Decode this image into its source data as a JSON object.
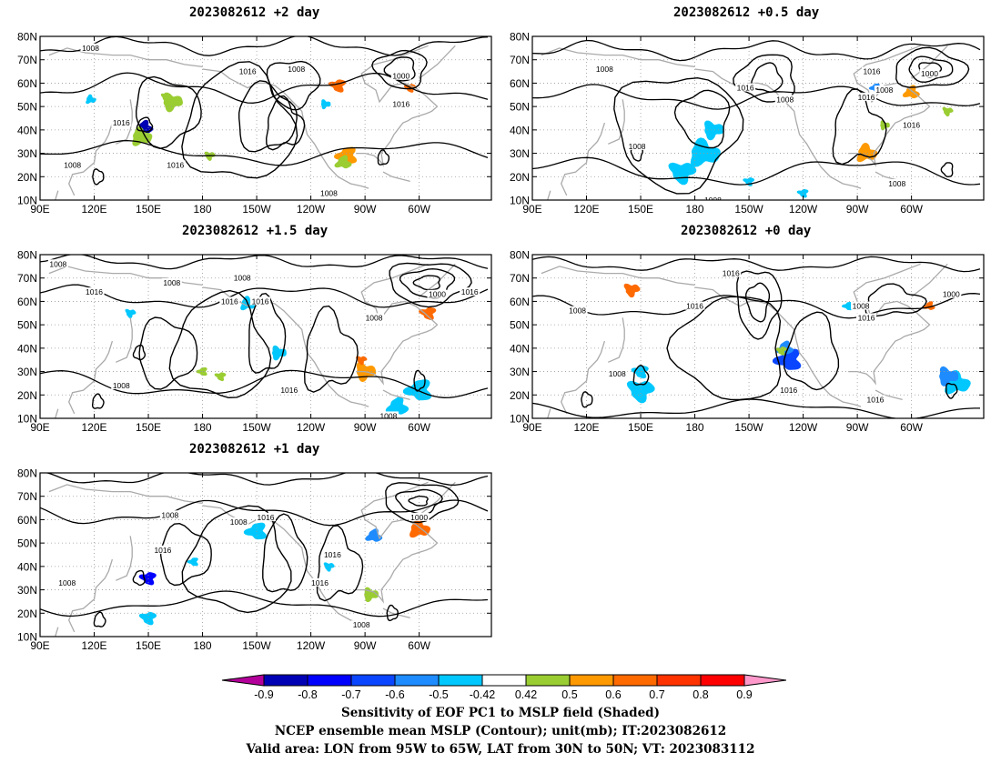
{
  "map": {
    "lat_labels": [
      "80N",
      "70N",
      "60N",
      "50N",
      "40N",
      "30N",
      "20N",
      "10N"
    ],
    "lon_labels": [
      "90E",
      "120E",
      "150E",
      "180",
      "150W",
      "120W",
      "90W",
      "60W"
    ],
    "lat_range": [
      10,
      80
    ],
    "lon_range_deg_east": [
      90,
      340
    ]
  },
  "panels": [
    {
      "id": "p2",
      "title": "2023082612 +2 day",
      "contour_labels": [
        {
          "text": "1008",
          "lon": 118,
          "lat": 75
        },
        {
          "text": "1016",
          "lon": 205,
          "lat": 65
        },
        {
          "text": "1008",
          "lon": 232,
          "lat": 66
        },
        {
          "text": "1000",
          "lon": 290,
          "lat": 63
        },
        {
          "text": "1016",
          "lon": 290,
          "lat": 51
        },
        {
          "text": "1016",
          "lon": 135,
          "lat": 43
        },
        {
          "text": "1008",
          "lon": 108,
          "lat": 25
        },
        {
          "text": "1016",
          "lon": 165,
          "lat": 25
        },
        {
          "text": "1008",
          "lon": 250,
          "lat": 13
        }
      ]
    },
    {
      "id": "p05",
      "title": "2023082612 +0.5 day",
      "contour_labels": [
        {
          "text": "1008",
          "lon": 130,
          "lat": 66
        },
        {
          "text": "1016",
          "lon": 208,
          "lat": 58
        },
        {
          "text": "1008",
          "lon": 230,
          "lat": 53
        },
        {
          "text": "1016",
          "lon": 278,
          "lat": 65
        },
        {
          "text": "1016",
          "lon": 275,
          "lat": 54
        },
        {
          "text": "1000",
          "lon": 310,
          "lat": 64
        },
        {
          "text": "1008",
          "lon": 285,
          "lat": 57
        },
        {
          "text": "1016",
          "lon": 300,
          "lat": 42
        },
        {
          "text": "1008",
          "lon": 148,
          "lat": 33
        },
        {
          "text": "1008",
          "lon": 292,
          "lat": 17
        },
        {
          "text": "1008",
          "lon": 190,
          "lat": 10
        }
      ]
    },
    {
      "id": "p15",
      "title": "2023082612 +1.5 day",
      "contour_labels": [
        {
          "text": "1008",
          "lon": 100,
          "lat": 76
        },
        {
          "text": "1016",
          "lon": 120,
          "lat": 64
        },
        {
          "text": "1008",
          "lon": 163,
          "lat": 68
        },
        {
          "text": "1008",
          "lon": 202,
          "lat": 70
        },
        {
          "text": "1016",
          "lon": 195,
          "lat": 60
        },
        {
          "text": "1016",
          "lon": 212,
          "lat": 60
        },
        {
          "text": "1008",
          "lon": 275,
          "lat": 53
        },
        {
          "text": "1000",
          "lon": 310,
          "lat": 63
        },
        {
          "text": "1016",
          "lon": 328,
          "lat": 64
        },
        {
          "text": "1008",
          "lon": 135,
          "lat": 24
        },
        {
          "text": "1016",
          "lon": 228,
          "lat": 22
        },
        {
          "text": "1008",
          "lon": 283,
          "lat": 11
        }
      ]
    },
    {
      "id": "p0",
      "title": "2023082612 +0 day",
      "contour_labels": [
        {
          "text": "1016",
          "lon": 200,
          "lat": 72
        },
        {
          "text": "1008",
          "lon": 115,
          "lat": 56
        },
        {
          "text": "1016",
          "lon": 180,
          "lat": 58
        },
        {
          "text": "1008",
          "lon": 272,
          "lat": 58
        },
        {
          "text": "1016",
          "lon": 275,
          "lat": 53
        },
        {
          "text": "1000",
          "lon": 322,
          "lat": 63
        },
        {
          "text": "1008",
          "lon": 137,
          "lat": 29
        },
        {
          "text": "1016",
          "lon": 232,
          "lat": 22
        },
        {
          "text": "1016",
          "lon": 280,
          "lat": 18
        }
      ]
    },
    {
      "id": "p1",
      "title": "2023082612 +1 day",
      "contour_labels": [
        {
          "text": "1008",
          "lon": 162,
          "lat": 62
        },
        {
          "text": "1008",
          "lon": 200,
          "lat": 59
        },
        {
          "text": "1016",
          "lon": 215,
          "lat": 61
        },
        {
          "text": "1000",
          "lon": 300,
          "lat": 61
        },
        {
          "text": "1016",
          "lon": 158,
          "lat": 47
        },
        {
          "text": "1016",
          "lon": 252,
          "lat": 45
        },
        {
          "text": "1008",
          "lon": 105,
          "lat": 33
        },
        {
          "text": "1016",
          "lon": 245,
          "lat": 33
        },
        {
          "text": "1008",
          "lon": 268,
          "lat": 15
        }
      ]
    }
  ],
  "colorbar": {
    "tick_labels": [
      "-0.9",
      "-0.8",
      "-0.7",
      "-0.6",
      "-0.5",
      "-0.42",
      "0.42",
      "0.5",
      "0.6",
      "0.7",
      "0.8",
      "0.9"
    ],
    "colors": [
      "#b4009a",
      "#0000b4",
      "#0000ff",
      "#0a46ff",
      "#1e8cff",
      "#00c8ff",
      "#ffffff",
      "#9acd32",
      "#ff9900",
      "#ff6a00",
      "#ff3300",
      "#ff0000",
      "#ff99cc"
    ]
  },
  "caption": {
    "line1": "Sensitivity of EOF PC1 to MSLP field (Shaded)",
    "line2": "NCEP ensemble mean MSLP (Contour); unit(mb); IT:2023082612",
    "line3": "Valid area: LON from 95W to 65W, LAT from 30N to 50N; VT: 2023083112"
  }
}
